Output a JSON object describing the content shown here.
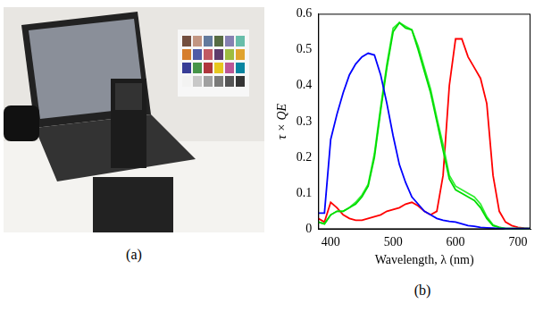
{
  "photo": {
    "panel_label": "(a)"
  },
  "chart_data": {
    "type": "line",
    "panel_label": "(b)",
    "x_label": "Wavelength, λ (nm)",
    "y_label": "τ × QE",
    "x": [
      380,
      390,
      400,
      410,
      420,
      430,
      440,
      450,
      460,
      470,
      480,
      490,
      500,
      510,
      520,
      530,
      540,
      550,
      560,
      570,
      580,
      590,
      600,
      610,
      620,
      630,
      640,
      650,
      660,
      670,
      680,
      690,
      700,
      710,
      720
    ],
    "series": [
      {
        "color": "#0000ff",
        "values": [
          0.045,
          0.045,
          0.25,
          0.32,
          0.38,
          0.43,
          0.46,
          0.48,
          0.49,
          0.485,
          0.43,
          0.35,
          0.26,
          0.18,
          0.13,
          0.09,
          0.07,
          0.05,
          0.04,
          0.03,
          0.025,
          0.022,
          0.02,
          0.015,
          0.01,
          0.008,
          0.005,
          0.004,
          0.003,
          0.002,
          0.002,
          0.002,
          0.002,
          0.002,
          0.002
        ]
      },
      {
        "color": "#00dd00",
        "values": [
          0.02,
          0.015,
          0.04,
          0.05,
          0.05,
          0.06,
          0.07,
          0.09,
          0.12,
          0.2,
          0.33,
          0.45,
          0.55,
          0.575,
          0.56,
          0.555,
          0.5,
          0.44,
          0.38,
          0.3,
          0.22,
          0.14,
          0.11,
          0.1,
          0.09,
          0.08,
          0.06,
          0.03,
          0.01,
          0.005,
          0.002,
          0.002,
          0.002,
          0.002,
          0.002
        ]
      },
      {
        "color": "#33ee33",
        "values": [
          0.02,
          0.015,
          0.04,
          0.05,
          0.05,
          0.06,
          0.075,
          0.095,
          0.125,
          0.21,
          0.34,
          0.46,
          0.56,
          0.575,
          0.565,
          0.555,
          0.51,
          0.45,
          0.39,
          0.31,
          0.235,
          0.15,
          0.12,
          0.11,
          0.1,
          0.09,
          0.07,
          0.035,
          0.012,
          0.005,
          0.002,
          0.002,
          0.002,
          0.002,
          0.002
        ]
      },
      {
        "color": "#ff0000",
        "values": [
          0.03,
          0.02,
          0.075,
          0.06,
          0.04,
          0.03,
          0.025,
          0.025,
          0.03,
          0.035,
          0.04,
          0.05,
          0.055,
          0.06,
          0.07,
          0.075,
          0.065,
          0.05,
          0.04,
          0.05,
          0.15,
          0.4,
          0.53,
          0.53,
          0.48,
          0.45,
          0.42,
          0.35,
          0.15,
          0.05,
          0.02,
          0.01,
          0.005,
          0.003,
          0.002
        ]
      }
    ],
    "xlim": [
      380,
      720
    ],
    "xticks": [
      400,
      500,
      600,
      700
    ],
    "ylim": [
      0,
      0.6
    ],
    "yticks": [
      0,
      0.1,
      0.2,
      0.3,
      0.4,
      0.5,
      0.6
    ],
    "grid": false
  }
}
